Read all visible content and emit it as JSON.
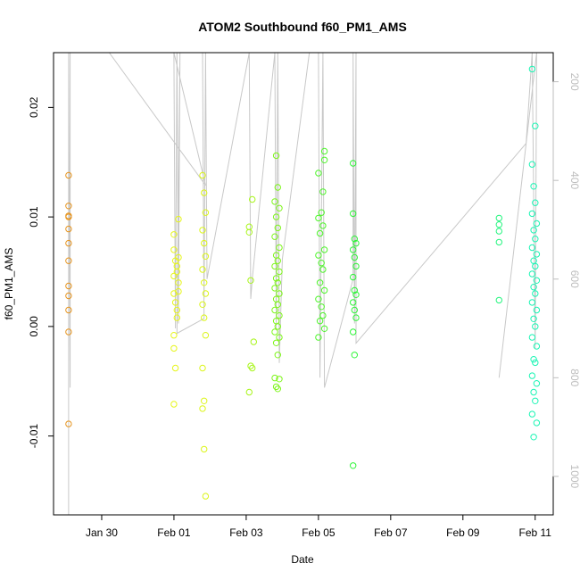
{
  "chart_data": {
    "type": "scatter",
    "title": "ATOM2 Southbound f60_PM1_AMS",
    "xlabel": "Date",
    "ylabel": "f60_PM1_AMS",
    "x_ticks": [
      {
        "date": "2017-01-30",
        "label": "Jan 30"
      },
      {
        "date": "2017-02-01",
        "label": "Feb 01"
      },
      {
        "date": "2017-02-03",
        "label": "Feb 03"
      },
      {
        "date": "2017-02-05",
        "label": "Feb 05"
      },
      {
        "date": "2017-02-07",
        "label": "Feb 07"
      },
      {
        "date": "2017-02-09",
        "label": "Feb 09"
      },
      {
        "date": "2017-02-11",
        "label": "Feb 11"
      }
    ],
    "xlim": [
      "2017-01-28T16:00",
      "2017-02-11T12:00"
    ],
    "ylim": [
      -0.0172,
      0.025
    ],
    "y_ticks": [
      -0.01,
      0.0,
      0.01,
      0.02
    ],
    "y_tick_labels": [
      "-0.01",
      "0.00",
      "0.01",
      "0.02"
    ],
    "y2_label_ticks": [
      200,
      400,
      600,
      800,
      1000
    ],
    "y2lim": [
      1078,
      141
    ],
    "points": [
      [
        "2017-01-29T02:00",
        0.0138,
        "#e69520"
      ],
      [
        "2017-01-29T02:00",
        0.011,
        "#e69520"
      ],
      [
        "2017-01-29T02:00",
        0.0101,
        "#e69520"
      ],
      [
        "2017-01-29T02:00",
        0.01,
        "#e69520"
      ],
      [
        "2017-01-29T02:00",
        0.0089,
        "#e69520"
      ],
      [
        "2017-01-29T02:00",
        0.0076,
        "#e69520"
      ],
      [
        "2017-01-29T02:00",
        0.006,
        "#e69520"
      ],
      [
        "2017-01-29T02:00",
        0.0037,
        "#e69520"
      ],
      [
        "2017-01-29T02:00",
        0.0028,
        "#e69520"
      ],
      [
        "2017-01-29T02:00",
        0.0015,
        "#e69520"
      ],
      [
        "2017-01-29T02:00",
        -0.0005,
        "#e69520"
      ],
      [
        "2017-01-29T02:00",
        -0.0089,
        "#e69520"
      ],
      [
        "2017-02-01T00:00",
        0.0084,
        "#e6f51a"
      ],
      [
        "2017-02-01T00:00",
        0.007,
        "#e6f51a"
      ],
      [
        "2017-02-01T01:00",
        0.006,
        "#e6f51a"
      ],
      [
        "2017-02-01T02:00",
        0.0055,
        "#e6f51a"
      ],
      [
        "2017-02-01T00:00",
        0.0046,
        "#e6f51a"
      ],
      [
        "2017-02-01T03:00",
        0.004,
        "#e6f51a"
      ],
      [
        "2017-02-01T00:00",
        0.003,
        "#e6f51a"
      ],
      [
        "2017-02-01T01:00",
        0.0022,
        "#e6f51a"
      ],
      [
        "2017-02-01T02:00",
        0.0015,
        "#e6f51a"
      ],
      [
        "2017-02-01T00:00",
        -0.002,
        "#e6f51a"
      ],
      [
        "2017-02-01T01:00",
        -0.0038,
        "#e6f51a"
      ],
      [
        "2017-02-01T00:00",
        -0.0071,
        "#e6f51a"
      ],
      [
        "2017-02-01T03:00",
        0.0098,
        "#e6f51a"
      ],
      [
        "2017-02-01T03:00",
        0.0063,
        "#e6f51a"
      ],
      [
        "2017-02-01T02:00",
        0.005,
        "#e6f51a"
      ],
      [
        "2017-02-01T03:00",
        0.0032,
        "#e6f51a"
      ],
      [
        "2017-02-01T02:00",
        0.0008,
        "#e6f51a"
      ],
      [
        "2017-02-01T00:00",
        -0.0008,
        "#e6f51a"
      ],
      [
        "2017-02-01T19:00",
        0.0138,
        "#dcf51a"
      ],
      [
        "2017-02-01T20:00",
        0.0122,
        "#dcf51a"
      ],
      [
        "2017-02-01T21:00",
        0.0104,
        "#dcf51a"
      ],
      [
        "2017-02-01T19:00",
        0.0088,
        "#dcf51a"
      ],
      [
        "2017-02-01T20:00",
        0.0076,
        "#dcf51a"
      ],
      [
        "2017-02-01T21:00",
        0.0064,
        "#dcf51a"
      ],
      [
        "2017-02-01T19:00",
        0.0052,
        "#dcf51a"
      ],
      [
        "2017-02-01T20:00",
        0.004,
        "#dcf51a"
      ],
      [
        "2017-02-01T21:00",
        0.003,
        "#dcf51a"
      ],
      [
        "2017-02-01T19:00",
        0.002,
        "#dcf51a"
      ],
      [
        "2017-02-01T20:00",
        0.0008,
        "#dcf51a"
      ],
      [
        "2017-02-01T21:00",
        -0.0008,
        "#dcf51a"
      ],
      [
        "2017-02-01T19:00",
        -0.0038,
        "#dcf51a"
      ],
      [
        "2017-02-01T20:00",
        -0.0068,
        "#dcf51a"
      ],
      [
        "2017-02-01T19:00",
        -0.0075,
        "#dcf51a"
      ],
      [
        "2017-02-01T20:00",
        -0.0112,
        "#dcf51a"
      ],
      [
        "2017-02-01T21:00",
        -0.0155,
        "#dcf51a"
      ],
      [
        "2017-02-03T02:00",
        0.0091,
        "#a8f51a"
      ],
      [
        "2017-02-03T02:00",
        0.0086,
        "#a8f51a"
      ],
      [
        "2017-02-03T03:00",
        0.0042,
        "#a8f51a"
      ],
      [
        "2017-02-03T04:00",
        0.0116,
        "#a8f51a"
      ],
      [
        "2017-02-03T05:00",
        -0.0014,
        "#a8f51a"
      ],
      [
        "2017-02-03T03:00",
        -0.0036,
        "#a8f51a"
      ],
      [
        "2017-02-03T04:00",
        -0.0038,
        "#a8f51a"
      ],
      [
        "2017-02-03T02:00",
        -0.006,
        "#a8f51a"
      ],
      [
        "2017-02-03T20:00",
        0.0156,
        "#7ef51a"
      ],
      [
        "2017-02-03T21:00",
        0.0127,
        "#7ef51a"
      ],
      [
        "2017-02-03T19:00",
        0.0114,
        "#7ef51a"
      ],
      [
        "2017-02-03T22:00",
        0.0108,
        "#7ef51a"
      ],
      [
        "2017-02-03T20:00",
        0.01,
        "#7ef51a"
      ],
      [
        "2017-02-03T21:00",
        0.009,
        "#7ef51a"
      ],
      [
        "2017-02-03T19:00",
        0.0082,
        "#7ef51a"
      ],
      [
        "2017-02-03T22:00",
        0.0072,
        "#7ef51a"
      ],
      [
        "2017-02-03T20:00",
        0.0065,
        "#7ef51a"
      ],
      [
        "2017-02-03T21:00",
        0.006,
        "#7ef51a"
      ],
      [
        "2017-02-03T19:00",
        0.0055,
        "#7ef51a"
      ],
      [
        "2017-02-03T22:00",
        0.005,
        "#7ef51a"
      ],
      [
        "2017-02-03T20:00",
        0.0044,
        "#7ef51a"
      ],
      [
        "2017-02-03T21:00",
        0.004,
        "#7ef51a"
      ],
      [
        "2017-02-03T19:00",
        0.0035,
        "#7ef51a"
      ],
      [
        "2017-02-03T22:00",
        0.003,
        "#7ef51a"
      ],
      [
        "2017-02-03T20:00",
        0.0025,
        "#7ef51a"
      ],
      [
        "2017-02-03T21:00",
        0.002,
        "#7ef51a"
      ],
      [
        "2017-02-03T19:00",
        0.0015,
        "#7ef51a"
      ],
      [
        "2017-02-03T22:00",
        0.001,
        "#7ef51a"
      ],
      [
        "2017-02-03T20:00",
        0.0005,
        "#7ef51a"
      ],
      [
        "2017-02-03T21:00",
        0.0,
        "#7ef51a"
      ],
      [
        "2017-02-03T19:00",
        -0.0005,
        "#7ef51a"
      ],
      [
        "2017-02-03T22:00",
        -0.001,
        "#7ef51a"
      ],
      [
        "2017-02-03T20:00",
        -0.0015,
        "#7ef51a"
      ],
      [
        "2017-02-03T21:00",
        -0.0026,
        "#7ef51a"
      ],
      [
        "2017-02-03T19:00",
        -0.0047,
        "#7ef51a"
      ],
      [
        "2017-02-03T22:00",
        -0.0048,
        "#7ef51a"
      ],
      [
        "2017-02-03T20:00",
        -0.0055,
        "#7ef51a"
      ],
      [
        "2017-02-03T21:00",
        -0.0057,
        "#7ef51a"
      ],
      [
        "2017-02-05T00:00",
        0.014,
        "#4df52a"
      ],
      [
        "2017-02-05T04:00",
        0.016,
        "#4df52a"
      ],
      [
        "2017-02-05T04:00",
        0.0152,
        "#4df52a"
      ],
      [
        "2017-02-05T03:00",
        0.0123,
        "#4df52a"
      ],
      [
        "2017-02-05T02:00",
        0.0104,
        "#4df52a"
      ],
      [
        "2017-02-05T00:00",
        0.0099,
        "#4df52a"
      ],
      [
        "2017-02-05T03:00",
        0.0092,
        "#4df52a"
      ],
      [
        "2017-02-05T01:00",
        0.0085,
        "#4df52a"
      ],
      [
        "2017-02-05T04:00",
        0.007,
        "#4df52a"
      ],
      [
        "2017-02-05T00:00",
        0.0065,
        "#4df52a"
      ],
      [
        "2017-02-05T02:00",
        0.0058,
        "#4df52a"
      ],
      [
        "2017-02-05T03:00",
        0.0052,
        "#4df52a"
      ],
      [
        "2017-02-05T01:00",
        0.004,
        "#4df52a"
      ],
      [
        "2017-02-05T04:00",
        0.0033,
        "#4df52a"
      ],
      [
        "2017-02-05T00:00",
        0.0025,
        "#4df52a"
      ],
      [
        "2017-02-05T02:00",
        0.0018,
        "#4df52a"
      ],
      [
        "2017-02-05T03:00",
        0.001,
        "#4df52a"
      ],
      [
        "2017-02-05T01:00",
        0.0005,
        "#4df52a"
      ],
      [
        "2017-02-05T04:00",
        -0.0002,
        "#4df52a"
      ],
      [
        "2017-02-05T00:00",
        -0.001,
        "#4df52a"
      ],
      [
        "2017-02-05T23:00",
        0.0149,
        "#2ef538"
      ],
      [
        "2017-02-05T23:00",
        0.0103,
        "#2ef538"
      ],
      [
        "2017-02-06T00:00",
        0.008,
        "#2ef538"
      ],
      [
        "2017-02-06T01:00",
        0.0076,
        "#2ef538"
      ],
      [
        "2017-02-05T23:00",
        0.007,
        "#2ef538"
      ],
      [
        "2017-02-06T00:00",
        0.0063,
        "#2ef538"
      ],
      [
        "2017-02-06T01:00",
        0.0055,
        "#2ef538"
      ],
      [
        "2017-02-05T23:00",
        0.0045,
        "#2ef538"
      ],
      [
        "2017-02-06T00:00",
        0.0033,
        "#2ef538"
      ],
      [
        "2017-02-06T01:00",
        0.0029,
        "#2ef538"
      ],
      [
        "2017-02-05T23:00",
        0.0022,
        "#2ef538"
      ],
      [
        "2017-02-06T00:00",
        0.0015,
        "#2ef538"
      ],
      [
        "2017-02-06T01:00",
        0.0008,
        "#2ef538"
      ],
      [
        "2017-02-05T23:00",
        -0.0005,
        "#2ef538"
      ],
      [
        "2017-02-06T00:00",
        -0.0026,
        "#2ef538"
      ],
      [
        "2017-02-05T23:00",
        -0.0127,
        "#2ef538"
      ],
      [
        "2017-02-10T00:00",
        0.0099,
        "#24f57e"
      ],
      [
        "2017-02-10T00:00",
        0.0093,
        "#24f57e"
      ],
      [
        "2017-02-10T00:00",
        0.0087,
        "#24f57e"
      ],
      [
        "2017-02-10T00:00",
        0.0077,
        "#24f57e"
      ],
      [
        "2017-02-10T00:00",
        0.0024,
        "#24f57e"
      ],
      [
        "2017-02-10T22:00",
        0.0235,
        "#1af5b4"
      ],
      [
        "2017-02-11T00:00",
        0.0183,
        "#1af5b4"
      ],
      [
        "2017-02-10T22:00",
        0.0148,
        "#1af5b4"
      ],
      [
        "2017-02-10T23:00",
        0.0128,
        "#1af5b4"
      ],
      [
        "2017-02-11T00:00",
        0.0113,
        "#1af5b4"
      ],
      [
        "2017-02-10T22:00",
        0.0103,
        "#1af5b4"
      ],
      [
        "2017-02-11T01:00",
        0.0094,
        "#1af5b4"
      ],
      [
        "2017-02-10T23:00",
        0.0088,
        "#1af5b4"
      ],
      [
        "2017-02-11T00:00",
        0.008,
        "#1af5b4"
      ],
      [
        "2017-02-10T22:00",
        0.0072,
        "#1af5b4"
      ],
      [
        "2017-02-11T01:00",
        0.0066,
        "#1af5b4"
      ],
      [
        "2017-02-10T23:00",
        0.006,
        "#1af5b4"
      ],
      [
        "2017-02-11T00:00",
        0.0055,
        "#1af5b4"
      ],
      [
        "2017-02-10T22:00",
        0.0048,
        "#1af5b4"
      ],
      [
        "2017-02-11T01:00",
        0.0042,
        "#1af5b4"
      ],
      [
        "2017-02-10T23:00",
        0.0036,
        "#1af5b4"
      ],
      [
        "2017-02-11T00:00",
        0.003,
        "#1af5b4"
      ],
      [
        "2017-02-10T22:00",
        0.0022,
        "#1af5b4"
      ],
      [
        "2017-02-11T01:00",
        0.0015,
        "#1af5b4"
      ],
      [
        "2017-02-10T23:00",
        0.0007,
        "#1af5b4"
      ],
      [
        "2017-02-11T00:00",
        0.0,
        "#1af5b4"
      ],
      [
        "2017-02-10T22:00",
        -0.001,
        "#1af5b4"
      ],
      [
        "2017-02-11T01:00",
        -0.0018,
        "#1af5b4"
      ],
      [
        "2017-02-10T23:00",
        -0.003,
        "#1af5b4"
      ],
      [
        "2017-02-11T00:00",
        -0.0033,
        "#1af5b4"
      ],
      [
        "2017-02-10T22:00",
        -0.0045,
        "#1af5b4"
      ],
      [
        "2017-02-11T01:00",
        -0.0052,
        "#1af5b4"
      ],
      [
        "2017-02-10T23:00",
        -0.006,
        "#1af5b4"
      ],
      [
        "2017-02-11T00:00",
        -0.0068,
        "#1af5b4"
      ],
      [
        "2017-02-10T22:00",
        -0.008,
        "#1af5b4"
      ],
      [
        "2017-02-11T01:00",
        -0.0088,
        "#1af5b4"
      ],
      [
        "2017-02-10T23:00",
        -0.0101,
        "#1af5b4"
      ]
    ],
    "track_line": [
      [
        "2017-01-29T02:00",
        1078
      ],
      [
        "2017-01-29T02:00",
        141
      ],
      [
        "2017-01-29T03:00",
        820
      ],
      [
        "2017-01-29T03:00",
        141
      ],
      [
        "2017-01-30T05:00",
        141
      ],
      [
        "2017-02-01T21:00",
        410
      ],
      [
        "2017-02-01T00:00",
        141
      ],
      [
        "2017-02-01T01:00",
        700
      ],
      [
        "2017-02-01T02:00",
        141
      ],
      [
        "2017-02-01T03:00",
        690
      ],
      [
        "2017-02-01T04:00",
        141
      ],
      [
        "2017-02-01T02:00",
        710
      ],
      [
        "2017-02-01T20:00",
        680
      ],
      [
        "2017-02-01T19:00",
        141
      ],
      [
        "2017-02-01T20:00",
        640
      ],
      [
        "2017-02-01T21:00",
        141
      ],
      [
        "2017-02-01T22:00",
        600
      ],
      [
        "2017-02-03T02:00",
        141
      ],
      [
        "2017-02-03T03:00",
        640
      ],
      [
        "2017-02-03T04:00",
        600
      ],
      [
        "2017-02-03T19:00",
        141
      ],
      [
        "2017-02-03T20:00",
        700
      ],
      [
        "2017-02-03T21:00",
        141
      ],
      [
        "2017-02-03T22:00",
        720
      ],
      [
        "2017-02-03T21:00",
        141
      ],
      [
        "2017-02-03T22:00",
        770
      ],
      [
        "2017-02-04T00:00",
        560
      ],
      [
        "2017-02-04T18:00",
        141
      ],
      [
        "2017-02-05T00:00",
        141
      ],
      [
        "2017-02-05T01:00",
        800
      ],
      [
        "2017-02-05T03:00",
        141
      ],
      [
        "2017-02-05T04:00",
        820
      ],
      [
        "2017-02-05T23:00",
        600
      ],
      [
        "2017-02-05T23:00",
        141
      ],
      [
        "2017-02-06T00:00",
        690
      ],
      [
        "2017-02-06T01:00",
        141
      ],
      [
        "2017-02-06T01:00",
        730
      ],
      [
        "2017-02-10T18:00",
        325
      ],
      [
        "2017-02-10T22:00",
        141
      ],
      [
        "2017-02-11T00:00",
        740
      ],
      [
        "2017-02-11T01:00",
        141
      ],
      [
        "2017-02-10T00:00",
        800
      ]
    ]
  }
}
